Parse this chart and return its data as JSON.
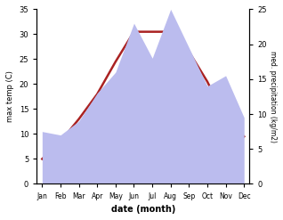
{
  "months": [
    "Jan",
    "Feb",
    "Mar",
    "Apr",
    "May",
    "Jun",
    "Jul",
    "Aug",
    "Sep",
    "Oct",
    "Nov",
    "Dec"
  ],
  "temperature": [
    5,
    8.5,
    13,
    18,
    24.5,
    30.5,
    30.5,
    30.5,
    26.5,
    20.5,
    13,
    9.5
  ],
  "precipitation": [
    7.5,
    7,
    9,
    13,
    16,
    23,
    18,
    25,
    19.5,
    14,
    15.5,
    9.5
  ],
  "temp_color": "#aa2222",
  "precip_fill_color": "#bbbcee",
  "temp_ylim": [
    0,
    35
  ],
  "precip_ylim": [
    0,
    25
  ],
  "xlabel": "date (month)",
  "ylabel_left": "max temp (C)",
  "ylabel_right": "med. precipitation (kg/m2)",
  "temp_linewidth": 1.8,
  "background_color": "#ffffff",
  "left_ticks": [
    0,
    5,
    10,
    15,
    20,
    25,
    30,
    35
  ],
  "right_ticks": [
    0,
    5,
    10,
    15,
    20,
    25
  ]
}
